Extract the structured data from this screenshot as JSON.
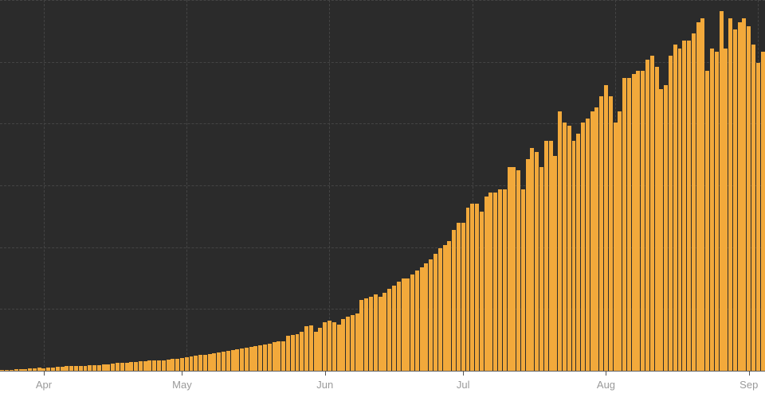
{
  "chart": {
    "type": "bar",
    "background_color": "#2b2b2b",
    "bar_color": "#f2a93b",
    "bar_gap_ratio": 0.14,
    "grid_color": "#444444",
    "grid_dash": "3,3",
    "baseline_color": "#666666",
    "ylim": [
      0,
      100
    ],
    "hgrid_values": [
      16.67,
      33.33,
      50,
      66.67,
      83.33,
      100
    ],
    "vgrid": {
      "count": 7,
      "period": 31
    },
    "x_axis": {
      "tick_color": "#555555",
      "label_color": "#9a9a9a",
      "label_fontsize": 13,
      "ticks_major": [
        {
          "pos": 9,
          "label": "Apr"
        },
        {
          "pos": 39,
          "label": "May"
        },
        {
          "pos": 70,
          "label": "Jun"
        },
        {
          "pos": 100,
          "label": "Jul"
        },
        {
          "pos": 131,
          "label": "Aug"
        },
        {
          "pos": 162,
          "label": "Sep"
        }
      ]
    },
    "values": [
      0.2,
      0.3,
      0.3,
      0.4,
      0.5,
      0.5,
      0.6,
      0.6,
      0.9,
      0.7,
      0.8,
      0.9,
      1.0,
      1.1,
      1.2,
      1.2,
      1.3,
      1.3,
      1.2,
      1.4,
      1.5,
      1.5,
      1.7,
      1.8,
      1.9,
      2.1,
      2.2,
      2.1,
      2.3,
      2.4,
      2.5,
      2.6,
      2.7,
      2.8,
      2.9,
      2.8,
      3.1,
      3.2,
      3.3,
      3.5,
      3.7,
      3.8,
      4.0,
      4.2,
      4.3,
      4.5,
      4.8,
      5.0,
      5.1,
      5.3,
      5.5,
      5.8,
      6.0,
      6.2,
      6.4,
      6.7,
      6.9,
      7.1,
      7.4,
      7.7,
      7.9,
      8.0,
      9.5,
      9.6,
      9.9,
      10.5,
      12.0,
      12.3,
      10.5,
      11.5,
      13.0,
      13.5,
      13.0,
      12.5,
      14.0,
      14.5,
      15.0,
      15.5,
      19.0,
      19.5,
      20.0,
      20.5,
      20.0,
      21.0,
      22.0,
      23.0,
      24.0,
      25.0,
      25.0,
      26.0,
      27.0,
      28.0,
      29.0,
      30.0,
      31.5,
      33.0,
      34.0,
      35.0,
      38.0,
      40.0,
      40.0,
      44.0,
      45.0,
      45.0,
      43.0,
      47.0,
      48.0,
      48.0,
      49.0,
      49.0,
      55.0,
      55.0,
      54.0,
      49.0,
      57.0,
      60.0,
      59.0,
      55.0,
      62.0,
      62.0,
      58.0,
      70.0,
      67.0,
      66.0,
      62.0,
      64.0,
      67.0,
      68.0,
      70.0,
      71.0,
      74.0,
      77.0,
      74.0,
      67.0,
      70.0,
      79.0,
      79.0,
      80.0,
      81.0,
      81.0,
      84.0,
      85.0,
      82.0,
      76.0,
      77.0,
      85.0,
      88.0,
      87.0,
      89.0,
      89.0,
      91.0,
      94.0,
      95.0,
      81.0,
      87.0,
      86.0,
      97.0,
      87.0,
      95.0,
      92.0,
      94.0,
      95.0,
      93.0,
      88.0,
      83.0,
      86.0
    ]
  }
}
